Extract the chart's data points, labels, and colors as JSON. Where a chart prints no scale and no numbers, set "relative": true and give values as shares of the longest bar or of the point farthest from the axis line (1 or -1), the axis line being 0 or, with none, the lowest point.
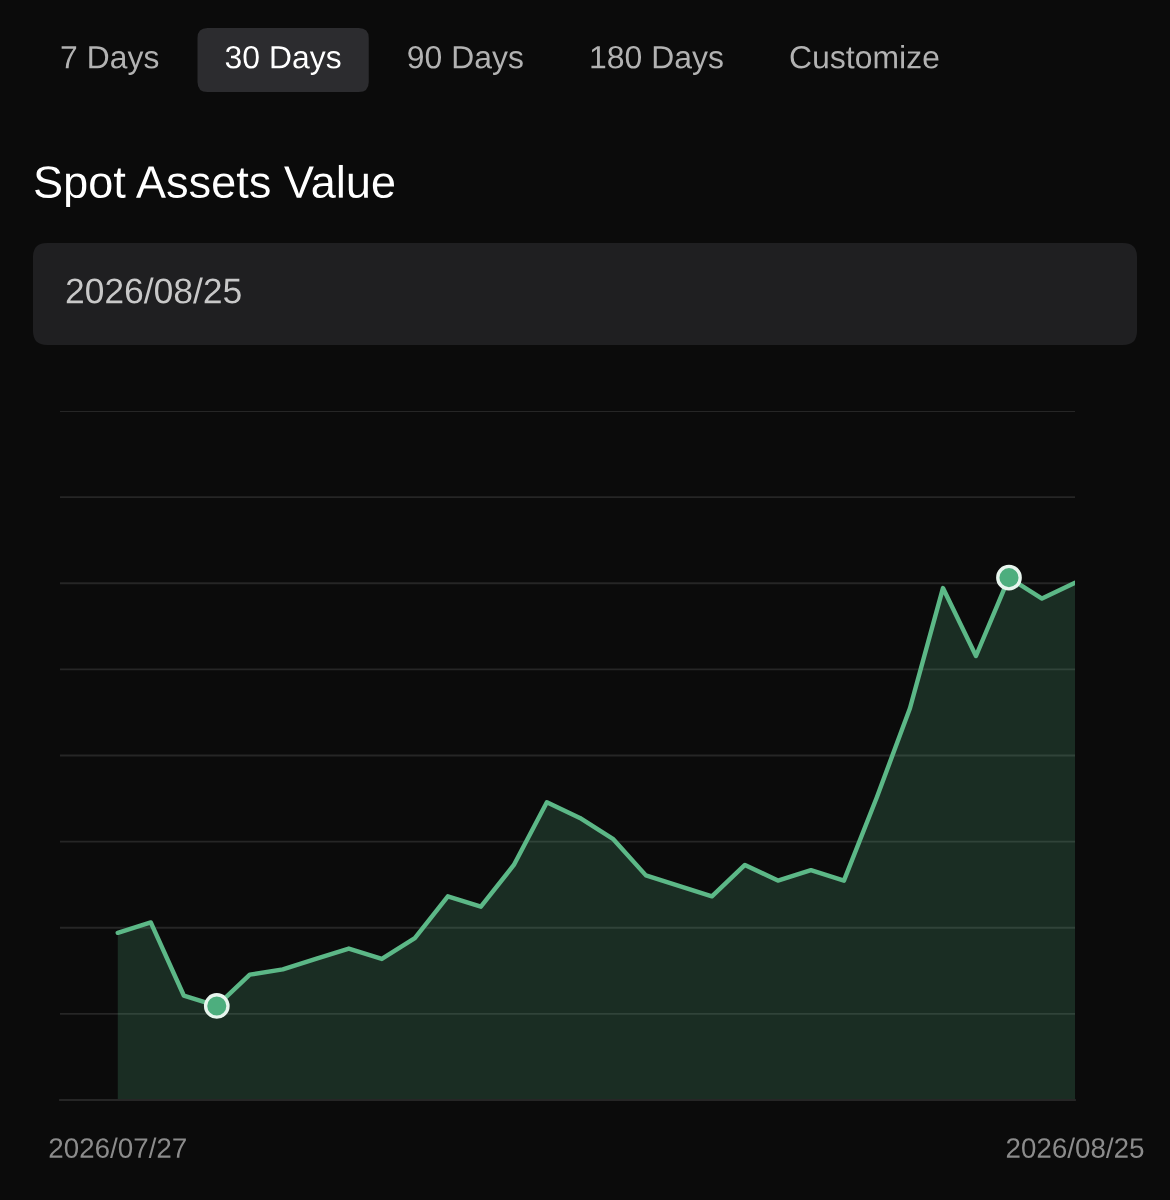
{
  "chart_data": {
    "type": "area",
    "title": "Spot Assets Value",
    "subtitle": "2026/08/25",
    "annotations": [
      "7 Days",
      "30 Days",
      "90 Days",
      "180 Days",
      "Customize"
    ],
    "relative": true,
    "grid": "y",
    "line_style": "solid",
    "xlim": [
      "2026-07-25T06:00",
      "2026-08-25"
    ],
    "xticks": [
      {
        "value": "2026-07-27",
        "label": "2026/07/27"
      },
      {
        "value": "2026-08-25",
        "label": "2026/08/25"
      }
    ],
    "x": [
      "2026-07-27",
      "2026-07-28",
      "2026-07-29",
      "2026-07-30",
      "2026-07-31",
      "2026-08-01",
      "2026-08-02",
      "2026-08-03",
      "2026-08-04",
      "2026-08-05",
      "2026-08-06",
      "2026-08-07",
      "2026-08-08",
      "2026-08-09",
      "2026-08-10",
      "2026-08-11",
      "2026-08-12",
      "2026-08-13",
      "2026-08-14",
      "2026-08-15",
      "2026-08-16",
      "2026-08-17",
      "2026-08-18",
      "2026-08-19",
      "2026-08-20",
      "2026-08-21",
      "2026-08-22",
      "2026-08-23",
      "2026-08-24",
      "2026-08-25"
    ],
    "series": [
      {
        "color": "#5cb887",
        "values": [
          0.32,
          0.34,
          0.2,
          0.18,
          0.24,
          0.25,
          0.27,
          0.29,
          0.27,
          0.31,
          0.39,
          0.37,
          0.45,
          0.57,
          0.54,
          0.5,
          0.43,
          0.41,
          0.39,
          0.45,
          0.42,
          0.44,
          0.42,
          0.58,
          0.75,
          0.98,
          0.85,
          1.0,
          0.96,
          0.99
        ]
      },
      {
        "type": "scatter",
        "color": "#4dae7e",
        "marker": "circle",
        "x": [
          "2026-07-30",
          "2026-08-23"
        ],
        "values": [
          0.18,
          1.0
        ]
      }
    ]
  }
}
